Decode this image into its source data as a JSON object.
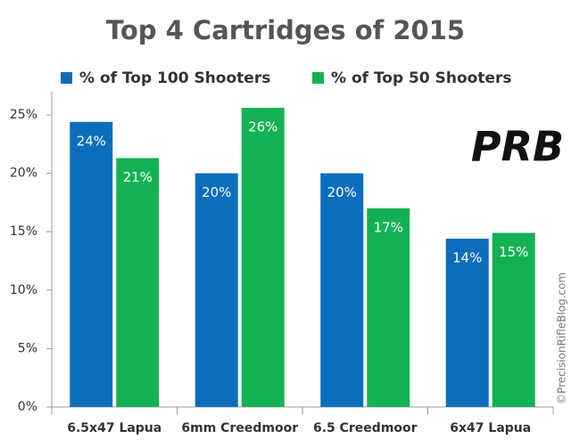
{
  "chart_data": {
    "type": "bar",
    "title": "Top 4 Cartridges of 2015",
    "categories": [
      "6.5x47 Lapua",
      "6mm Creedmoor",
      "6.5 Creedmoor",
      "6x47 Lapua"
    ],
    "series": [
      {
        "name": "% of Top 100 Shooters",
        "color": "#0a6ebd",
        "values": [
          24.4,
          20.0,
          20.0,
          14.4
        ],
        "value_labels": [
          "24%",
          "20%",
          "20%",
          "14%"
        ]
      },
      {
        "name": "% of Top 50 Shooters",
        "color": "#12b253",
        "values": [
          21.3,
          25.6,
          17.0,
          14.9
        ],
        "value_labels": [
          "21%",
          "26%",
          "17%",
          "15%"
        ]
      }
    ],
    "ylim": [
      0,
      27
    ],
    "yticks": [
      {
        "value": 0,
        "label": "0%"
      },
      {
        "value": 5,
        "label": "5%"
      },
      {
        "value": 10,
        "label": "10%"
      },
      {
        "value": 15,
        "label": "15%"
      },
      {
        "value": 20,
        "label": "20%"
      },
      {
        "value": 25,
        "label": "25%"
      }
    ],
    "grid": false,
    "legend": "top",
    "logo": "PRB",
    "watermark": "©PrecisionRifleBlog.com"
  }
}
